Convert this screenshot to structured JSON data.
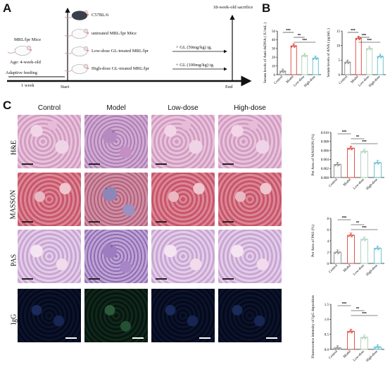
{
  "panels": {
    "a": "A",
    "b": "B",
    "c": "C"
  },
  "timeline": {
    "mouse_label": "MRL/lpr Mice",
    "age_label": "Age: 4-week-old",
    "adaptive": "Adaptive feeding",
    "week": "1 week",
    "start": "Start",
    "end": "End",
    "endpoint": "18-week-old sacrifice",
    "groups": [
      "C57BL/6",
      "untreated MRL/lpr Mice",
      "Low-dose GL-treated MRL/lpr",
      "High-dose GL-treated MRL/lpr"
    ],
    "treatments": [
      "+ GL (50mg/kg) ig.",
      "+ GL (100mg/kg) ig."
    ]
  },
  "colors": {
    "control": "#8a8a8a",
    "model": "#e0413a",
    "low": "#a9d0b6",
    "high": "#5cbccd"
  },
  "charts_b": [
    {
      "type": "bar",
      "ylabel": "Serum levels of Anti-dsDNA ( IU/mL )",
      "categories": [
        "Control",
        "Model",
        "Low-dose",
        "High-dose"
      ],
      "values": [
        4,
        33,
        22,
        19
      ],
      "ylim": [
        0,
        50
      ],
      "yticks": [
        "0",
        "10",
        "20",
        "30",
        "40",
        "50"
      ],
      "sig": [
        "***",
        "**",
        "***"
      ]
    },
    {
      "type": "bar",
      "ylabel": "Serum levels of ANA ( pg/mL )",
      "categories": [
        "Control",
        "Model",
        "Low-dose",
        "High-dose"
      ],
      "values": [
        4.3,
        12.5,
        9,
        6.3
      ],
      "ylim": [
        0,
        15
      ],
      "yticks": [
        "0",
        "5",
        "10",
        "15"
      ],
      "sig": [
        "***",
        "***",
        "***"
      ]
    }
  ],
  "grid": {
    "columns": [
      "Control",
      "Model",
      "Low-dose",
      "High-dose"
    ],
    "rows": [
      "H&E",
      "MASSON",
      "PAS",
      "IgG"
    ],
    "annotation_letter": "c"
  },
  "charts_c": [
    {
      "type": "bar",
      "ylabel": "Per Area of MASSON (%)",
      "categories": [
        "Control",
        "Model",
        "Low-dose",
        "High-dose"
      ],
      "values": [
        0.0029,
        0.0065,
        0.0058,
        0.0033
      ],
      "ylim": [
        0,
        0.01
      ],
      "yticks": [
        "0.000",
        "0.002",
        "0.004",
        "0.006",
        "0.008",
        "0.010"
      ],
      "sig": [
        "***",
        "**",
        "***"
      ]
    },
    {
      "type": "bar",
      "ylabel": "Per Area of PAS (%)",
      "categories": [
        "Control",
        "Model",
        "Low-dose",
        "High-dose"
      ],
      "values": [
        2,
        5,
        4.3,
        2.7
      ],
      "ylim": [
        0,
        8
      ],
      "yticks": [
        "0",
        "2",
        "4",
        "6",
        "8"
      ],
      "sig": [
        "***",
        "**",
        "***"
      ]
    },
    {
      "type": "bar",
      "ylabel": "Fluorescence intensity of IgG deposition",
      "categories": [
        "Control",
        "Model",
        "Low-dose",
        "High-dose"
      ],
      "values": [
        0.05,
        0.6,
        0.4,
        0.08
      ],
      "ylim": [
        0,
        1.5
      ],
      "yticks": [
        "0.0",
        "0.5",
        "1.0",
        "1.5"
      ],
      "sig": [
        "***",
        "**",
        "***"
      ]
    }
  ]
}
